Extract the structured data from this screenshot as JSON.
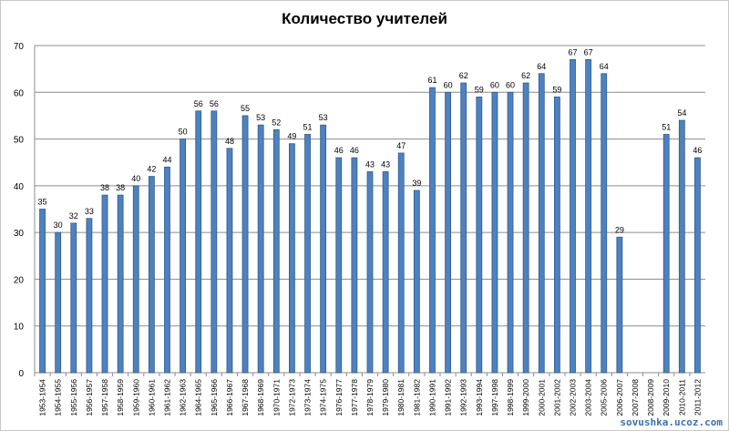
{
  "chart_data": {
    "type": "bar",
    "title": "Количество учителей",
    "xlabel": "",
    "ylabel": "",
    "ylim": [
      0,
      70
    ],
    "yticks": [
      0,
      10,
      20,
      30,
      40,
      50,
      60,
      70
    ],
    "grid": true,
    "legend": "none",
    "bar_color": "#4f81bd",
    "bar_edge_color": "#2c5b94",
    "categories": [
      "1953-1954",
      "1954-1955",
      "1955-1956",
      "1956-1957",
      "1957-1958",
      "1958-1959",
      "1959-1960",
      "1960-1961",
      "1961-1962",
      "1962-1963",
      "1964-1965",
      "1965-1966",
      "1966-1967",
      "1967-1968",
      "1968-1969",
      "1970-1971",
      "1972-1973",
      "1973-1974",
      "1974-1975",
      "1976-1977",
      "1977-1978",
      "1978-1979",
      "1979-1980",
      "1980-1981",
      "1981-1982",
      "1990-1991",
      "1991-1992",
      "1992-1993",
      "1993-1994",
      "1997-1998",
      "1998-1999",
      "1999-2000",
      "2000-2001",
      "2001-2002",
      "2002-2003",
      "2003-2004",
      "2005-2006",
      "2006-2007",
      "2007-2008",
      "2008-2009",
      "2009-2010",
      "2010-2011",
      "2011-2012"
    ],
    "values": [
      35,
      30,
      32,
      33,
      38,
      38,
      40,
      42,
      44,
      50,
      56,
      56,
      48,
      55,
      53,
      52,
      49,
      51,
      53,
      46,
      46,
      43,
      43,
      47,
      39,
      61,
      60,
      62,
      59,
      60,
      60,
      62,
      64,
      59,
      67,
      67,
      64,
      29,
      null,
      null,
      51,
      54,
      46
    ]
  },
  "watermark": "sovushka.ucoz.com"
}
